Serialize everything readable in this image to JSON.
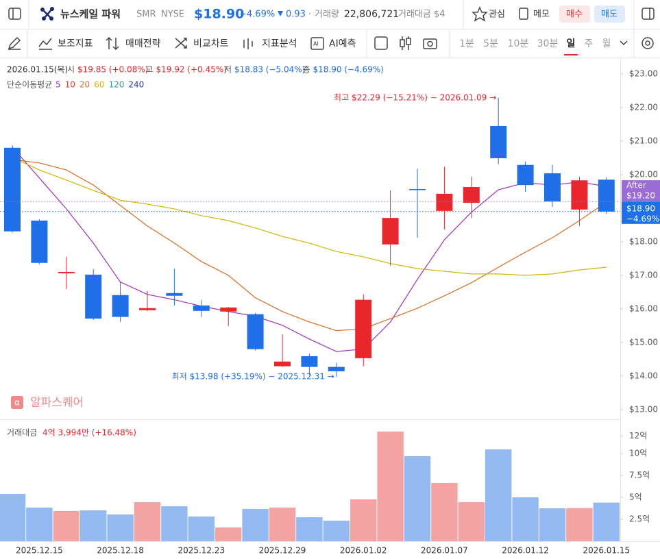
{
  "header": {
    "name": "뉴스케일 파워",
    "ticker": "SMR",
    "exchange": "NYSE",
    "price": "$18.90",
    "change_pct": "−4.69%",
    "change": "0.93",
    "volume_label": "거래량",
    "volume": "22,806,721",
    "turnover": "거래대금 $4",
    "buttons": [
      "관심",
      "메모",
      "매수",
      "매도"
    ]
  },
  "toolbar": {
    "tools": [
      "보조지표",
      "매매전략",
      "비교차트",
      "지표분석",
      "AI예측"
    ],
    "intervals": [
      "1분",
      "5분",
      "10분",
      "30분",
      "일",
      "주",
      "월"
    ],
    "selected": "일"
  },
  "watermark": "알파스퀘어",
  "chart_data": [
    {
      "type": "candlestick",
      "ohlc_legend": {
        "date": "2026.01.15(목)",
        "items": [
          {
            "label": "시",
            "value": "$19.85 (+0.08%)",
            "color": "#e8262c"
          },
          {
            "label": "고",
            "value": "$19.92 (+0.45%)",
            "color": "#e8262c"
          },
          {
            "label": "저",
            "value": "$18.83 (−5.04%)",
            "color": "#1f6fe8"
          },
          {
            "label": "종",
            "value": "$18.90 (−4.69%)",
            "color": "#1f6fe8"
          }
        ]
      },
      "ma_title": "단순이동평균",
      "categories": [
        null,
        "2025.12.15",
        null,
        null,
        "2025.12.18",
        null,
        null,
        "2025.12.23",
        null,
        null,
        "2025.12.29",
        null,
        null,
        "2026.01.02",
        null,
        null,
        "2026.01.07",
        null,
        null,
        "2026.01.12",
        null,
        null,
        "2026.01.15"
      ],
      "open": [
        20.8,
        18.63,
        17.06,
        17.02,
        16.41,
        15.96,
        16.47,
        16.1,
        15.92,
        15.84,
        14.29,
        14.59,
        14.27,
        14.53,
        17.92,
        19.57,
        18.92,
        19.16,
        21.45,
        20.29,
        20.04,
        18.96,
        19.85
      ],
      "high": [
        20.88,
        18.67,
        17.55,
        17.18,
        16.8,
        16.53,
        17.2,
        16.27,
        16.06,
        15.88,
        15.24,
        14.67,
        14.39,
        16.43,
        19.53,
        20.18,
        20.24,
        19.94,
        22.29,
        20.39,
        20.29,
        19.94,
        19.92
      ],
      "low": [
        18.27,
        17.33,
        16.59,
        15.67,
        15.61,
        15.93,
        16.1,
        15.76,
        15.49,
        14.76,
        14.27,
        14.02,
        13.98,
        14.29,
        17.29,
        18.12,
        18.37,
        18.71,
        20.31,
        19.49,
        19.04,
        18.47,
        18.83
      ],
      "close": [
        18.31,
        17.37,
        17.1,
        15.71,
        15.76,
        16.02,
        16.39,
        15.94,
        16.04,
        14.8,
        14.43,
        14.27,
        14.14,
        16.27,
        18.71,
        19.55,
        19.43,
        19.63,
        20.49,
        19.69,
        19.2,
        19.83,
        18.9
      ],
      "up_color": "#e8262c",
      "down_color": "#1f6fe8",
      "series": [
        {
          "name": "5",
          "color": "#a02fc0",
          "values": [
            20.82,
            19.9,
            18.98,
            17.96,
            16.8,
            16.43,
            16.27,
            16.08,
            15.92,
            15.78,
            15.51,
            15.1,
            14.73,
            14.8,
            15.61,
            16.88,
            18.06,
            18.88,
            19.55,
            19.76,
            19.69,
            19.78,
            19.65
          ]
        },
        {
          "name": "10",
          "color": "#e53935"
        },
        {
          "name": "20",
          "color": "#dd6b20",
          "values": [
            20.45,
            20.35,
            20.14,
            19.69,
            19.08,
            18.47,
            17.96,
            17.41,
            17.0,
            16.33,
            15.92,
            15.61,
            15.35,
            15.41,
            15.71,
            16.02,
            16.39,
            16.78,
            17.24,
            17.69,
            18.12,
            18.63,
            19.18
          ]
        },
        {
          "name": "60",
          "color": "#d4b400",
          "values": [
            20.51,
            20.14,
            19.84,
            19.53,
            19.24,
            19.12,
            18.98,
            18.78,
            18.63,
            18.41,
            18.16,
            17.96,
            17.71,
            17.55,
            17.35,
            17.2,
            17.12,
            17.04,
            17.04,
            17.0,
            17.04,
            17.16,
            17.24
          ]
        },
        {
          "name": "120",
          "color": "#14a3a3"
        },
        {
          "name": "240",
          "color": "#2a3a9c"
        }
      ],
      "annotations": [
        {
          "text": "최고 $22.29 (−15.21%) − 2026.01.09 →",
          "color": "#e8262c"
        },
        {
          "text": "최저 $13.98 (+35.19%) − 2025.12.31 →",
          "color": "#1f6fe8"
        }
      ],
      "price_lines": [
        {
          "name": "After",
          "price": {
            "value": 19.2,
            "label": "$19.20"
          },
          "color": "#9b6bd6"
        },
        {
          "price": {
            "value": 18.9,
            "label": "$18.90"
          },
          "change": "−4.69%",
          "color": "#1f6fe8"
        }
      ],
      "ylim": [
        12.71,
        23.49
      ],
      "yticks": [
        {
          "value": 13,
          "label": "$13.00"
        },
        {
          "value": 14,
          "label": "$14.00"
        },
        {
          "value": 15,
          "label": "$15.00"
        },
        {
          "value": 16,
          "label": "$16.00"
        },
        {
          "value": 17,
          "label": "$17.00"
        },
        {
          "value": 18,
          "label": "$18.00"
        },
        {
          "value": 19,
          "label": "$19.00"
        },
        {
          "value": 20,
          "label": "$20.00"
        },
        {
          "value": 21,
          "label": "$21.00"
        },
        {
          "value": 22,
          "label": "$22.00"
        },
        {
          "value": 23,
          "label": "$23.00"
        }
      ]
    },
    {
      "type": "bar",
      "title": "거래대금",
      "summary": "4억 3,994만 (+16.48%)",
      "values": [
        5.39,
        3.83,
        3.44,
        3.52,
        3.05,
        4.45,
        3.98,
        2.81,
        1.56,
        3.67,
        3.83,
        2.73,
        2.34,
        4.77,
        12.5,
        9.69,
        6.64,
        4.45,
        10.47,
        5.0,
        3.75,
        3.78,
        4.4
      ],
      "up_color": "#f4a3a3",
      "down_color": "#93b9f2",
      "ylim": [
        0,
        13.9
      ],
      "yticks": [
        {
          "value": 2.5,
          "label": "2.5억"
        },
        {
          "value": 5,
          "label": "5억"
        },
        {
          "value": 7.5,
          "label": "7.5억"
        },
        {
          "value": 10,
          "label": "10억"
        },
        {
          "value": 12,
          "label": "12억"
        }
      ]
    }
  ]
}
